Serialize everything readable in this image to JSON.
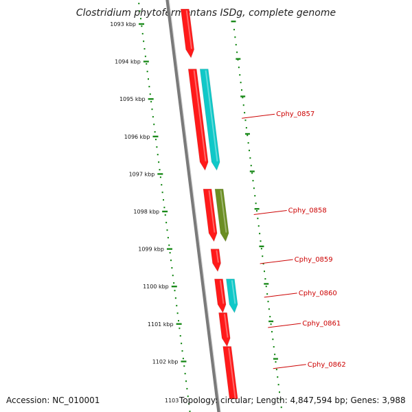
{
  "title": "Clostridium phytofermentans ISDg, complete genome",
  "footer": {
    "accession": "Accession: NC_010001",
    "topology": "Topology: circular; Length: 4,847,594 bp; Genes: 3,988",
    "partial_tick": "1103"
  },
  "colors": {
    "forward_gene": "#ff1a1a",
    "reverse_gene": "#10c8c8",
    "olive_gene": "#6b8e23",
    "backbone": "#7a7a7a",
    "ticks": "#1a8a1a",
    "label": "#cc0000"
  },
  "scale": {
    "unit": "kbp",
    "ticks": [
      {
        "kbp": 1093,
        "label": "1093 kbp"
      },
      {
        "kbp": 1094,
        "label": "1094 kbp"
      },
      {
        "kbp": 1095,
        "label": "1095 kbp"
      },
      {
        "kbp": 1096,
        "label": "1096 kbp"
      },
      {
        "kbp": 1097,
        "label": "1097 kbp"
      },
      {
        "kbp": 1098,
        "label": "1098 kbp"
      },
      {
        "kbp": 1099,
        "label": "1099 kbp"
      },
      {
        "kbp": 1100,
        "label": "1100 kbp"
      },
      {
        "kbp": 1101,
        "label": "1101 kbp"
      },
      {
        "kbp": 1102,
        "label": "1102 kbp"
      }
    ]
  },
  "features": [
    {
      "id": "f0",
      "track": "forward",
      "color": "forward_gene",
      "start": 1092.6,
      "end": 1093.9,
      "arrow": true
    },
    {
      "id": "f1",
      "track": "forward",
      "color": "forward_gene",
      "start": 1094.2,
      "end": 1096.9,
      "arrow": true,
      "label": "Cphy_0857"
    },
    {
      "id": "f2",
      "track": "reverse",
      "color": "reverse_gene",
      "start": 1094.2,
      "end": 1096.9,
      "arrow": true
    },
    {
      "id": "f3",
      "track": "forward",
      "color": "forward_gene",
      "start": 1097.4,
      "end": 1098.8,
      "arrow": true
    },
    {
      "id": "f4",
      "track": "reverse",
      "color": "olive_gene",
      "start": 1097.4,
      "end": 1098.8,
      "arrow": true,
      "label": "Cphy_0858"
    },
    {
      "id": "f5",
      "track": "forward",
      "color": "forward_gene",
      "start": 1099.0,
      "end": 1099.6,
      "arrow": true,
      "label": "Cphy_0859"
    },
    {
      "id": "f6",
      "track": "forward",
      "color": "forward_gene",
      "start": 1099.8,
      "end": 1100.7,
      "arrow": true
    },
    {
      "id": "f7",
      "track": "reverse",
      "color": "reverse_gene",
      "start": 1099.8,
      "end": 1100.7,
      "arrow": true,
      "label": "Cphy_0860"
    },
    {
      "id": "f8",
      "track": "forward",
      "color": "forward_gene",
      "start": 1100.7,
      "end": 1101.6,
      "arrow": true,
      "label": "Cphy_0861"
    },
    {
      "id": "f9",
      "track": "forward",
      "color": "forward_gene",
      "start": 1101.6,
      "end": 1103.0,
      "arrow": false,
      "label": "Cphy_0862"
    }
  ]
}
